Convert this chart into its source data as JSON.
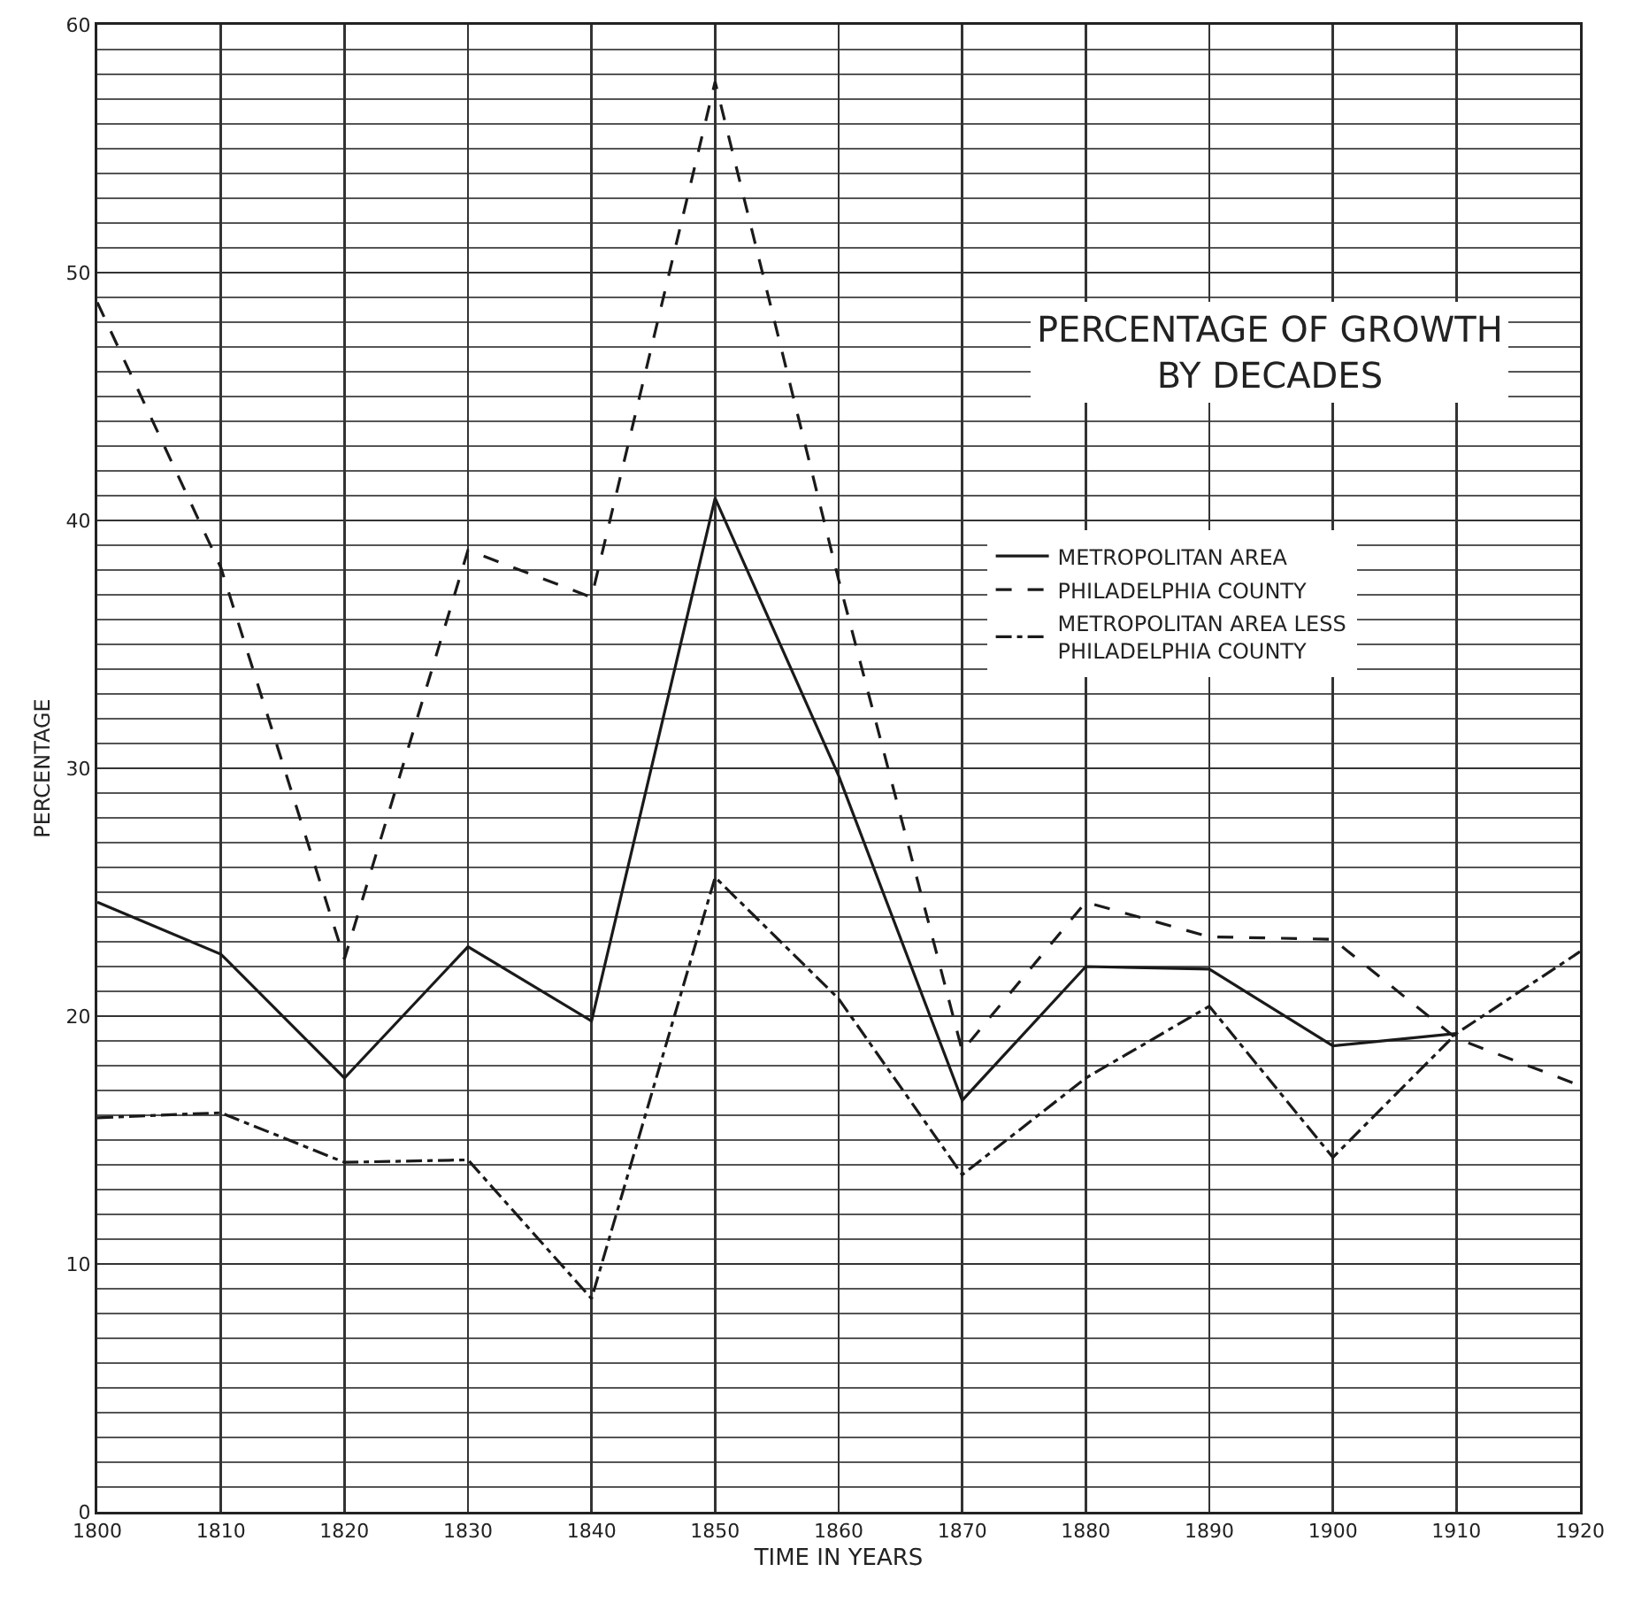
{
  "chart_data": {
    "type": "line",
    "title": "PERCENTAGE OF GROWTH\nBY DECADES",
    "xlabel": "TIME IN YEARS",
    "ylabel": "PERCENTAGE",
    "x": [
      1800,
      1810,
      1820,
      1830,
      1840,
      1850,
      1860,
      1870,
      1880,
      1890,
      1900,
      1910,
      1920
    ],
    "series": [
      {
        "name": "METROPOLITAN AREA",
        "color": "#1a1a1a",
        "line_style": "solid",
        "values": [
          24.6,
          22.5,
          17.5,
          22.8,
          19.8,
          40.9,
          29.7,
          16.6,
          22.0,
          21.9,
          18.8,
          19.3,
          null
        ]
      },
      {
        "name": "PHILADELPHIA COUNTY",
        "color": "#1a1a1a",
        "line_style": "dotted",
        "values": [
          48.8,
          38.1,
          22.3,
          38.8,
          36.9,
          57.7,
          37.6,
          18.6,
          24.6,
          23.2,
          23.1,
          19.1,
          17.2
        ]
      },
      {
        "name": "METROPOLITAN AREA LESS\nPHILADELPHIA COUNTY",
        "color": "#1a1a1a",
        "line_style": "dashed",
        "values": [
          15.9,
          16.1,
          14.1,
          14.2,
          8.6,
          25.6,
          20.7,
          13.6,
          17.5,
          20.4,
          14.3,
          19.3,
          22.6
        ]
      }
    ],
    "xlim": [
      1800,
      1920
    ],
    "xticks": [
      1800,
      1810,
      1820,
      1830,
      1840,
      1850,
      1860,
      1870,
      1880,
      1890,
      1900,
      1910,
      1920
    ],
    "ylim": [
      0,
      60
    ],
    "yticks": [
      0,
      10,
      20,
      30,
      40,
      50,
      60
    ],
    "grid": true,
    "legend": "top right",
    "marker": "none"
  }
}
